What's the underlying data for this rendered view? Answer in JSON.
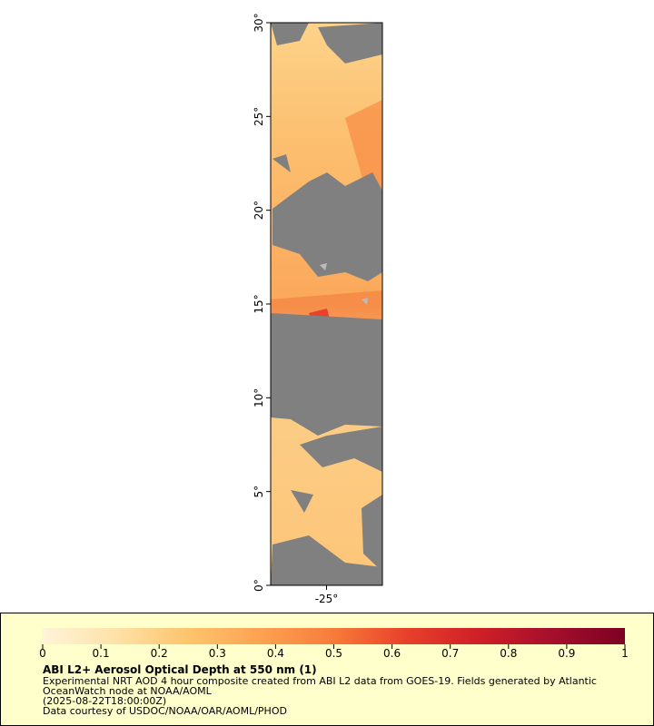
{
  "map": {
    "xlim": [
      -28,
      -22
    ],
    "ylim": [
      0,
      30
    ],
    "yticks": [
      {
        "value": 0,
        "label": "0°"
      },
      {
        "value": 5,
        "label": "5°"
      },
      {
        "value": 10,
        "label": "10°"
      },
      {
        "value": 15,
        "label": "15°"
      },
      {
        "value": 20,
        "label": "20°"
      },
      {
        "value": 25,
        "label": "25°"
      },
      {
        "value": 30,
        "label": "30°"
      }
    ],
    "xticks": [
      {
        "value": -25,
        "label": "-25°"
      }
    ]
  },
  "legend": {
    "title": "ABI L2+ Aerosol Optical Depth at 550 nm (1)",
    "lines": [
      "Experimental NRT AOD 4 hour composite created from ABI L2 data from GOES-19. Fields generated by Atlantic",
      "OceanWatch node at NOAA/AOML",
      "(2025-08-22T18:00:00Z)",
      "Data courtesy of USDOC/NOAA/OAR/AOML/PHOD"
    ],
    "colorbar": {
      "lim": [
        0,
        1
      ],
      "ticks": [
        0,
        0.1,
        0.2,
        0.3,
        0.4,
        0.5,
        0.6,
        0.7,
        0.8,
        0.9,
        1
      ],
      "colors": [
        "#fff4d8",
        "#fee2a8",
        "#fdc46c",
        "#fca252",
        "#f77b3a",
        "#e8402a",
        "#cf1f28",
        "#a50f2c",
        "#7d0022"
      ]
    }
  }
}
